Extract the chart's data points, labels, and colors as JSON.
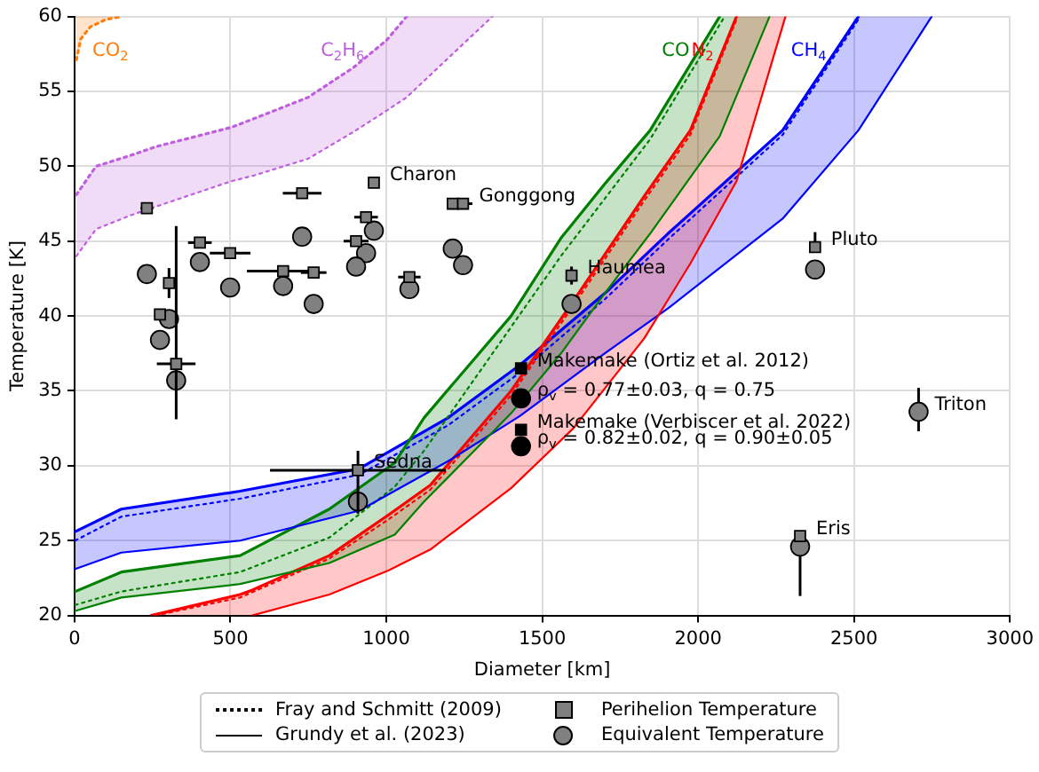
{
  "chart_data": {
    "type": "line",
    "xlabel": "Diameter [km]",
    "ylabel": "Temperature [K]",
    "xlim": [
      0,
      3000
    ],
    "xticks": [
      0,
      500,
      1000,
      1500,
      2000,
      2500,
      3000
    ],
    "ylim": [
      20,
      60
    ],
    "yticks": [
      20,
      25,
      30,
      35,
      40,
      45,
      50,
      55,
      60
    ],
    "grid": true,
    "legend": "bottom",
    "series": [
      {
        "name": "CO$_{2}$",
        "line_style": "dotted",
        "color": "#ff7f0e",
        "x": [
          6,
          20,
          50,
          100,
          154
        ],
        "values": [
          57.1,
          58.5,
          59.3,
          59.8,
          60
        ],
        "lower": [
          57.1,
          58.5,
          59.3,
          59.8,
          60
        ],
        "upper": [
          60,
          60,
          60,
          60,
          60
        ]
      },
      {
        "name": "C$_{2}$H$_{6}$",
        "line_style": "dotted",
        "color": "#bf5fdf",
        "x": [
          6,
          69,
          177,
          260,
          503,
          578,
          749,
          895,
          1000,
          1065,
          1340
        ],
        "values": [
          48.1,
          50.0,
          50.7,
          51.3,
          52.6,
          53.2,
          54.6,
          56.6,
          58.4,
          60,
          null
        ],
        "lower": [
          44.0,
          45.8,
          46.7,
          47.3,
          49.0,
          49.4,
          50.5,
          52.3,
          53.7,
          54.6,
          60
        ],
        "upper": [
          48.1,
          50.0,
          50.7,
          51.3,
          52.6,
          53.2,
          54.6,
          56.6,
          58.4,
          60,
          60
        ]
      },
      {
        "line_style": "dotted",
        "color": "#bf5fdf",
        "x": [
          6,
          69,
          177,
          260,
          503,
          578,
          749,
          895,
          1000,
          1065,
          1340
        ],
        "values": [
          44.0,
          45.8,
          46.7,
          47.3,
          49.0,
          49.4,
          50.5,
          52.3,
          53.7,
          54.6,
          60
        ]
      },
      {
        "line_style": "solid",
        "color": "#008000",
        "x": [
          2,
          150,
          531,
          817,
          1027,
          1121,
          1400,
          1560,
          1700,
          1846,
          2069,
          2229
        ],
        "values": [
          20.3,
          21.2,
          22.1,
          23.5,
          25.4,
          27.6,
          33.5,
          37.5,
          41.5,
          45.5,
          52.0,
          60
        ]
      },
      {
        "line_style": "solid",
        "color": "#ff0000",
        "x": [
          570,
          817,
          1006,
          1141,
          1400,
          1600,
          1827,
          1975,
          2123,
          2280
        ],
        "values": [
          20,
          21.4,
          23.0,
          24.4,
          28.5,
          32.5,
          38.5,
          43.5,
          49.0,
          60
        ]
      },
      {
        "line_style": "solid",
        "color": "#0000ff",
        "x": [
          2,
          150,
          531,
          913,
          1198,
          1427,
          1700,
          1903,
          2271,
          2514,
          2749
        ],
        "values": [
          23.1,
          24.2,
          25.0,
          27.0,
          30.3,
          33.3,
          37.5,
          40.5,
          46.5,
          52.4,
          60
        ]
      },
      {
        "name": "CO",
        "line_style": "solid",
        "color": "#008000",
        "x": [
          2,
          150,
          531,
          817,
          1027,
          1121,
          1400,
          1560,
          1700,
          1846,
          2069,
          2229
        ],
        "values": [
          21.6,
          22.9,
          24.0,
          27.1,
          30.2,
          33.2,
          40.0,
          45.2,
          48.8,
          52.4,
          60,
          null
        ],
        "lower": [
          20.3,
          21.2,
          22.1,
          23.5,
          25.4,
          27.6,
          33.5,
          37.5,
          41.5,
          45.5,
          52.0,
          60
        ],
        "upper": [
          21.6,
          22.9,
          24.0,
          27.1,
          30.2,
          33.2,
          40.0,
          45.2,
          48.8,
          52.4,
          60,
          60
        ]
      },
      {
        "line_style": "dotted",
        "color": "#008000",
        "x": [
          2,
          150,
          531,
          817,
          1027,
          1121,
          1560,
          1846,
          2085
        ],
        "values": [
          20.7,
          21.6,
          22.9,
          25.2,
          28.6,
          31.0,
          44.0,
          51.8,
          60
        ]
      },
      {
        "name": "N$_{2}$",
        "line_style": "solid",
        "color": "#ff0000",
        "x": [
          246,
          531,
          570,
          817,
          1006,
          1141,
          1400,
          1600,
          1827,
          1975,
          2123,
          2280
        ],
        "values": [
          20,
          21.4,
          21.7,
          24.0,
          26.7,
          28.7,
          35.0,
          41.0,
          48.0,
          52.4,
          60,
          null
        ],
        "lower": [
          20,
          20,
          20,
          21.4,
          23.0,
          24.4,
          28.5,
          32.5,
          38.5,
          43.5,
          49.0,
          60
        ],
        "upper": [
          20,
          21.4,
          21.7,
          24.0,
          26.7,
          28.7,
          35.0,
          41.0,
          48.0,
          52.4,
          60,
          60
        ]
      },
      {
        "line_style": "dotted",
        "color": "#ff0000",
        "x": [
          260,
          531,
          817,
          1006,
          1141,
          1400,
          1600,
          1827,
          1975,
          2123
        ],
        "values": [
          20,
          21.2,
          23.8,
          26.4,
          28.4,
          34.7,
          40.7,
          47.7,
          52.1,
          59.8
        ]
      },
      {
        "name": "CH$_{4}$",
        "line_style": "solid",
        "color": "#0000ff",
        "x": [
          2,
          150,
          531,
          913,
          1198,
          1427,
          1700,
          1903,
          2271,
          2514,
          2749
        ],
        "values": [
          25.6,
          27.1,
          28.3,
          29.8,
          33.2,
          36.7,
          41.5,
          45.5,
          52.4,
          60,
          null
        ],
        "lower": [
          23.1,
          24.2,
          25.0,
          27.0,
          30.3,
          33.3,
          37.5,
          40.5,
          46.5,
          52.4,
          60
        ],
        "upper": [
          25.6,
          27.1,
          28.3,
          29.8,
          33.2,
          36.7,
          41.5,
          45.5,
          52.4,
          60,
          60
        ]
      },
      {
        "line_style": "dotted",
        "color": "#0000ff",
        "x": [
          2,
          150,
          531,
          913,
          1198,
          1427,
          1700,
          1903,
          2271,
          2514
        ],
        "values": [
          25.0,
          26.6,
          27.8,
          29.4,
          32.7,
          36.2,
          41.1,
          45.1,
          52.1,
          59.8
        ]
      },
      {
        "name": "Perihelion Temperature",
        "type": "scatter",
        "marker": "square",
        "color": "#808080",
        "x": [
          232,
          303,
          274,
          326,
          402,
          499,
          669,
          767,
          730,
          935,
          903,
          960,
          1074,
          1213,
          1246,
          1594,
          1432,
          1432,
          909,
          2327,
          2375
        ],
        "values": [
          47.2,
          42.2,
          40.1,
          36.8,
          44.9,
          44.2,
          43.0,
          42.9,
          48.2,
          46.6,
          45.0,
          48.9,
          42.6,
          47.5,
          47.5,
          42.7,
          36.5,
          32.4,
          29.7,
          25.3,
          44.6
        ],
        "colors": [
          "#808080",
          "#808080",
          "#808080",
          "#808080",
          "#808080",
          "#808080",
          "#808080",
          "#808080",
          "#808080",
          "#808080",
          "#808080",
          "#808080",
          "#808080",
          "#808080",
          "#808080",
          "#808080",
          "#000000",
          "#000000",
          "#808080",
          "#808080",
          "#808080"
        ],
        "xerrors": [
          20,
          null,
          null,
          62,
          38,
          65,
          116,
          41,
          62,
          38,
          40,
          null,
          36,
          null,
          30,
          null,
          null,
          null,
          282,
          null,
          null
        ],
        "errors": [
          null,
          [
            41.2,
            43.2
          ],
          null,
          [
            33.1,
            46.0
          ],
          null,
          null,
          null,
          null,
          null,
          null,
          null,
          null,
          null,
          null,
          null,
          [
            42.1,
            43.3
          ],
          null,
          null,
          [
            26.8,
            31.0
          ],
          null,
          [
            44.6,
            45.6
          ]
        ]
      },
      {
        "name": "Equivalent Temperature",
        "type": "scatter",
        "marker": "circle",
        "color": "#808080",
        "x": [
          232,
          303,
          274,
          326,
          402,
          499,
          669,
          767,
          730,
          960,
          935,
          903,
          1074,
          1213,
          1246,
          1594,
          1432,
          1432,
          909,
          2327,
          2375,
          2707
        ],
        "values": [
          42.8,
          39.8,
          38.4,
          35.7,
          43.6,
          41.9,
          42.0,
          40.8,
          45.3,
          45.7,
          44.2,
          43.3,
          41.8,
          44.5,
          43.4,
          40.8,
          34.5,
          31.3,
          27.6,
          24.6,
          43.1,
          33.6
        ],
        "colors": [
          "#808080",
          "#808080",
          "#808080",
          "#808080",
          "#808080",
          "#808080",
          "#808080",
          "#808080",
          "#808080",
          "#808080",
          "#808080",
          "#808080",
          "#808080",
          "#808080",
          "#808080",
          "#808080",
          "#000000",
          "#000000",
          "#808080",
          "#808080",
          "#808080",
          "#808080"
        ],
        "errors": [
          null,
          null,
          null,
          null,
          null,
          null,
          null,
          null,
          null,
          null,
          null,
          null,
          null,
          null,
          null,
          null,
          null,
          null,
          null,
          [
            21.3,
            24.6
          ],
          null,
          [
            32.3,
            35.2
          ]
        ]
      }
    ],
    "annotations": [
      "Fray and Schmitt (2009)",
      "Grundy et al. (2023)",
      {
        "text": "Charon",
        "x": 960,
        "y": 48.9
      },
      {
        "text": "Gonggong",
        "x": 1246,
        "y": 47.5
      },
      {
        "text": "Haumea",
        "x": 1594,
        "y": 42.7
      },
      {
        "text": "Pluto",
        "x": 2375,
        "y": 44.6
      },
      {
        "text": "Triton",
        "x": 2707,
        "y": 33.6
      },
      {
        "text": "Eris",
        "x": 2327,
        "y": 25.3
      },
      {
        "text": "Sedna",
        "x": 909,
        "y": 29.7
      },
      {
        "text": "Makemake (Ortiz et al. 2012)",
        "x": 1432,
        "y": 36.5
      },
      {
        "text": "ρ$_{v}$ = 0.77±0.03, q = 0.75",
        "x": 1432,
        "y": 34.5
      },
      {
        "text": "Makemake (Verbiscer et al. 2022)",
        "x": 1432,
        "y": 32.4
      },
      {
        "text": "ρ$_{v}$ = 0.82±0.02, q = 0.90±0.05",
        "x": 1432,
        "y": 31.3
      }
    ]
  }
}
